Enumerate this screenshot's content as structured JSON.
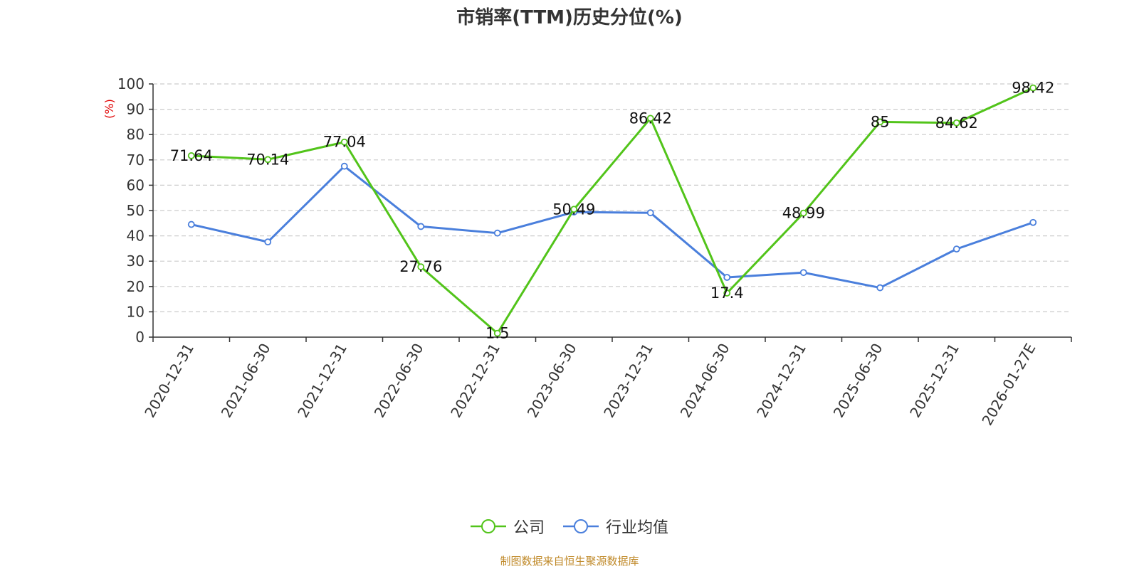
{
  "chart_data": {
    "type": "line",
    "title": "市销率(TTM)历史分位(%)",
    "ylabel": "(%)",
    "ylim": [
      0,
      100
    ],
    "yticks": [
      0,
      10,
      20,
      30,
      40,
      50,
      60,
      70,
      80,
      90,
      100
    ],
    "grid": true,
    "legend_position": "bottom-center",
    "categories": [
      "2020-12-31",
      "2021-06-30",
      "2021-12-31",
      "2022-06-30",
      "2022-12-31",
      "2023-06-30",
      "2023-12-31",
      "2024-06-30",
      "2024-12-31",
      "2025-06-30",
      "2025-12-31",
      "2026-01-27E"
    ],
    "series": [
      {
        "name": "公司",
        "color": "#52c41a",
        "values": [
          71.64,
          70.14,
          77.04,
          27.76,
          1.5,
          50.49,
          86.42,
          17.4,
          48.99,
          85,
          84.62,
          98.42
        ],
        "labels": [
          "71.64",
          "70.14",
          "77.04",
          "27.76",
          "1.5",
          "50.49",
          "86.42",
          "17.4",
          "48.99",
          "85",
          "84.62",
          "98.42"
        ]
      },
      {
        "name": "行业均值",
        "color": "#4a7fdc",
        "values": [
          44.5,
          37.6,
          67.5,
          43.7,
          41.1,
          49.4,
          49.1,
          23.6,
          25.5,
          19.5,
          34.8,
          45.3
        ]
      }
    ]
  },
  "footer": {
    "source": "制图数据来自恒生聚源数据库"
  },
  "colors": {
    "axis": "#333333",
    "grid": "#cccccc",
    "ylabel": "#e00000",
    "source": "#c08a2a"
  }
}
